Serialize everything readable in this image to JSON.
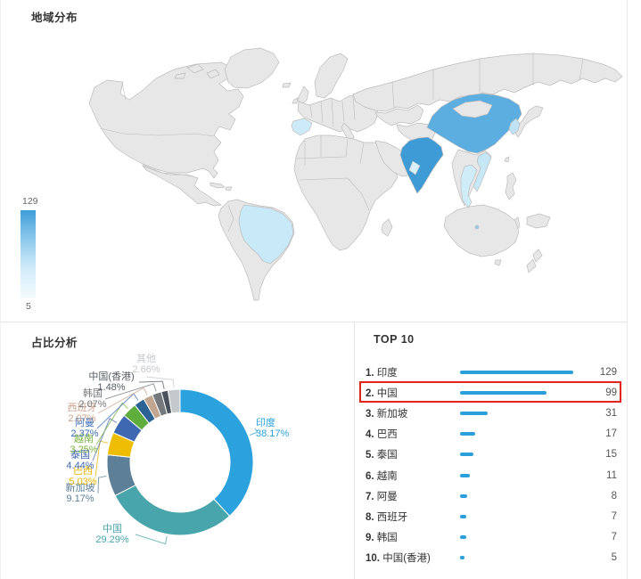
{
  "titles": {
    "map": "地域分布",
    "pie": "占比分析",
    "top10": "TOP 10"
  },
  "legend": {
    "max": "129",
    "min": "5",
    "gradient_stops": [
      "#3f9ed8",
      "#8ec9ec",
      "#d3ecf9",
      "#f5fbfe"
    ]
  },
  "map_colors": {
    "default": "#e7e7e7",
    "border": "#bcbcbc",
    "india": "#3f9bd5",
    "china": "#5cade0",
    "brazil": "#c8e9f8",
    "thailand": "#cfecf9",
    "vietnam": "#c6e7f6",
    "south-korea": "#bfe3f5",
    "spain": "#cdeaf8",
    "oman": "#d8f0fb",
    "singapore": "#8ecbeb"
  },
  "top10": {
    "bar_color": "#2b9fd9",
    "highlight_color": "#e1251b",
    "highlighted_rank": 2,
    "max_value": 129,
    "items": [
      {
        "rank": "1.",
        "name": "印度",
        "value": 129
      },
      {
        "rank": "2.",
        "name": "中国",
        "value": 99
      },
      {
        "rank": "3.",
        "name": "新加坡",
        "value": 31
      },
      {
        "rank": "4.",
        "name": "巴西",
        "value": 17
      },
      {
        "rank": "5.",
        "name": "泰国",
        "value": 15
      },
      {
        "rank": "6.",
        "name": "越南",
        "value": 11
      },
      {
        "rank": "7.",
        "name": "阿曼",
        "value": 8
      },
      {
        "rank": "8.",
        "name": "西班牙",
        "value": 7
      },
      {
        "rank": "9.",
        "name": "韩国",
        "value": 7
      },
      {
        "rank": "10.",
        "name": "中国(香港)",
        "value": 5
      }
    ]
  },
  "chart_data": [
    {
      "type": "heatmap",
      "subtype": "world-choropleth",
      "title": "地域分布",
      "color_scale": {
        "min": 5,
        "max": 129,
        "min_color": "#f5fbfe",
        "max_color": "#3f9ed8"
      },
      "regions": [
        {
          "name": "印度",
          "value": 129
        },
        {
          "name": "中国",
          "value": 99
        },
        {
          "name": "新加坡",
          "value": 31
        },
        {
          "name": "巴西",
          "value": 17
        },
        {
          "name": "泰国",
          "value": 15
        },
        {
          "name": "越南",
          "value": 11
        },
        {
          "name": "阿曼",
          "value": 8
        },
        {
          "name": "西班牙",
          "value": 7
        },
        {
          "name": "韩国",
          "value": 7
        },
        {
          "name": "中国(香港)",
          "value": 5
        }
      ]
    },
    {
      "type": "pie",
      "title": "占比分析",
      "inner_radius_ratio": 0.68,
      "legend_position": "none",
      "labels": [
        "印度",
        "中国",
        "新加坡",
        "巴西",
        "泰国",
        "越南",
        "阿曼",
        "西班牙",
        "韩国",
        "中国(香港)",
        "其他"
      ],
      "values": [
        38.17,
        29.29,
        9.17,
        5.03,
        4.44,
        3.25,
        2.37,
        2.07,
        2.07,
        1.48,
        2.66
      ],
      "percent_labels": [
        "38.17%",
        "29.29%",
        "9.17%",
        "5.03%",
        "4.44%",
        "3.25%",
        "2.37%",
        "2.07%",
        "2.07%",
        "1.48%",
        "2.66%"
      ],
      "colors": [
        "#2ba1dd",
        "#49a5ac",
        "#5d8098",
        "#eebd04",
        "#3f68b3",
        "#5fae3d",
        "#2d6394",
        "#c2a68f",
        "#74797d",
        "#49525b",
        "#c6c9cc"
      ],
      "label_colors": [
        "#2ba1dd",
        "#49a5ac",
        "#5d8098",
        "#e5b404",
        "#4268b2",
        "#7ab23d",
        "#3c6eb4",
        "#c9a18b",
        "#74797d",
        "#555d66",
        "#c6c9cc"
      ]
    }
  ]
}
